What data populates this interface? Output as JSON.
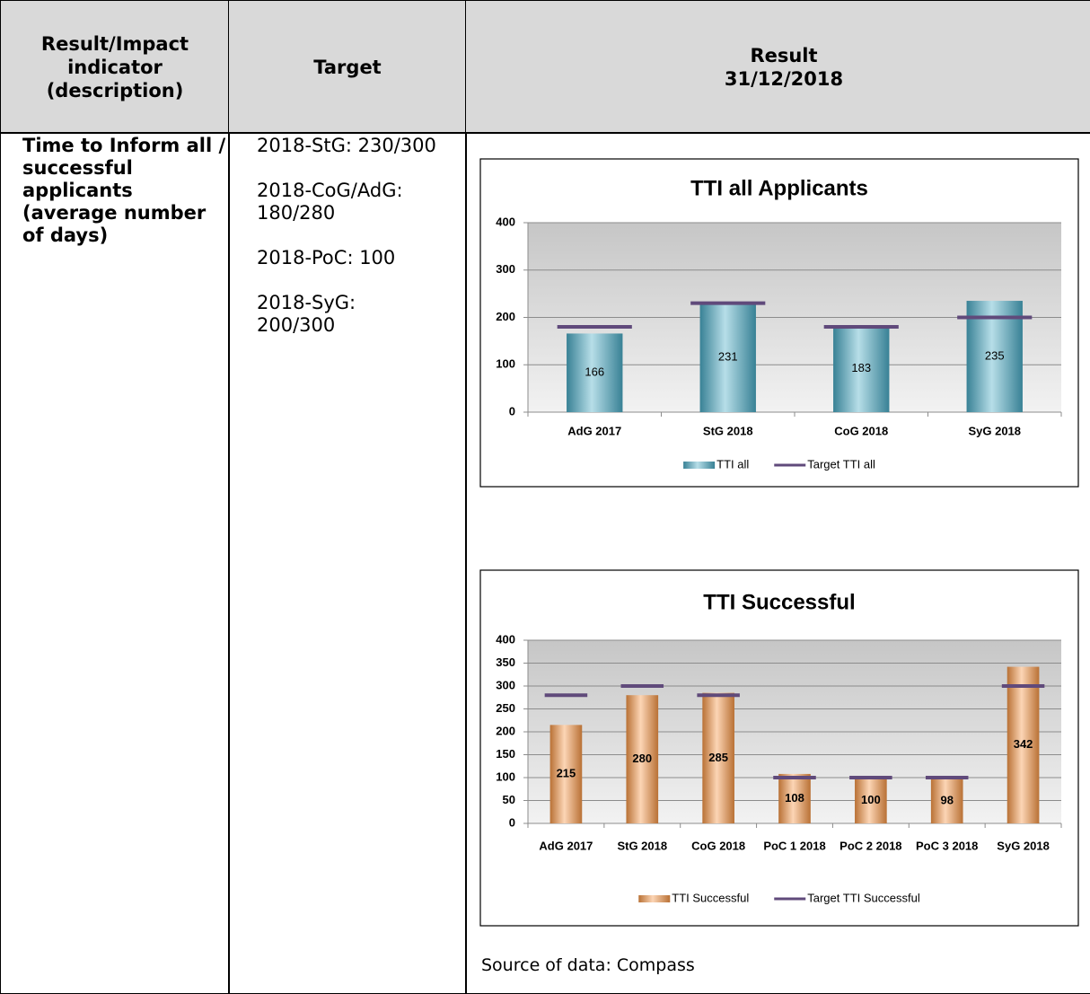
{
  "table": {
    "header": [
      "Result/Impact indicator (description)",
      "Target",
      "Result\n31/12/2018"
    ],
    "indicator": "Time to Inform all / successful applicants (average number of days)",
    "targets": [
      "2018-StG: 230/300",
      "2018-CoG/AdG: 180/280",
      "2018-PoC: 100",
      "2018-SyG: 200/300"
    ],
    "source": "Source of data: Compass"
  },
  "chart_data": [
    {
      "type": "bar",
      "title": "TTI all Applicants",
      "categories": [
        "AdG 2017",
        "StG 2018",
        "CoG 2018",
        "SyG 2018"
      ],
      "series": [
        {
          "name": "TTI all",
          "color": "#4bacc6",
          "values": [
            166,
            231,
            183,
            235
          ]
        },
        {
          "name": "Target TTI all",
          "color": "#604a7b",
          "marker": "dash",
          "values": [
            180,
            230,
            180,
            200
          ]
        }
      ],
      "ylim": [
        0,
        400
      ],
      "yticks": [
        0,
        100,
        200,
        300,
        400
      ],
      "grid": true,
      "legend": "bottom"
    },
    {
      "type": "bar",
      "title": "TTI Successful",
      "categories": [
        "AdG 2017",
        "StG 2018",
        "CoG 2018",
        "PoC 1 2018",
        "PoC 2 2018",
        "PoC 3 2018",
        "SyG 2018"
      ],
      "series": [
        {
          "name": "TTI Successful",
          "color": "#f79646",
          "values": [
            215,
            280,
            285,
            108,
            100,
            98,
            342
          ]
        },
        {
          "name": "Target TTI Successful",
          "color": "#604a7b",
          "marker": "dash",
          "values": [
            280,
            300,
            280,
            100,
            100,
            100,
            300
          ]
        }
      ],
      "ylim": [
        0,
        400
      ],
      "yticks": [
        0,
        50,
        100,
        150,
        200,
        250,
        300,
        350,
        400
      ],
      "grid": true,
      "legend": "bottom"
    }
  ]
}
